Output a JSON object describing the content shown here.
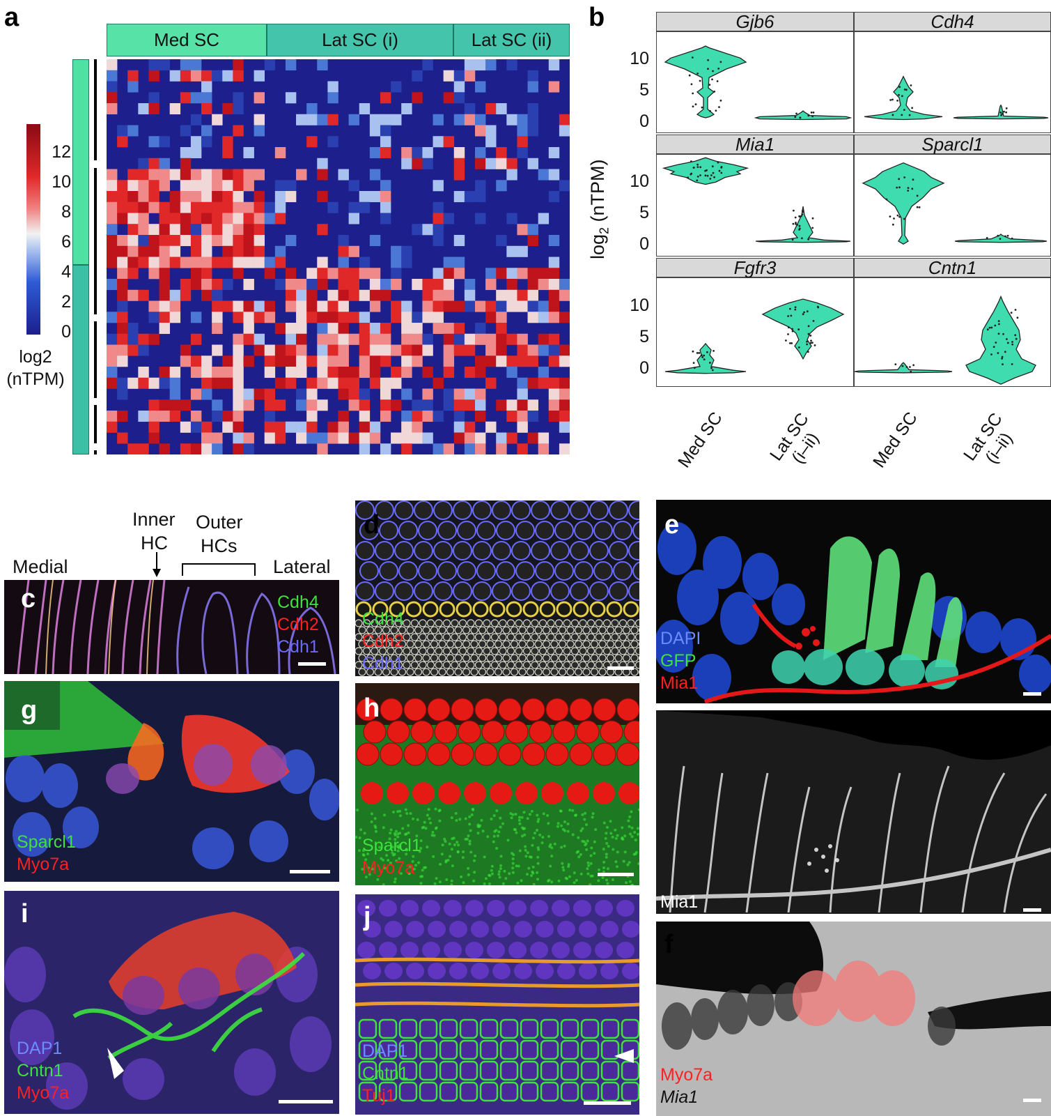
{
  "labels": {
    "a": "a",
    "b": "b",
    "c": "c",
    "d": "d",
    "e": "e",
    "f": "f",
    "g": "g",
    "h": "h",
    "i": "i",
    "j": "j"
  },
  "panel_a": {
    "groups": [
      "Med SC",
      "Lat SC (i)",
      "Lat SC (ii)"
    ],
    "colorbar_ticks": [
      "12",
      "10",
      "8",
      "6",
      "4",
      "2",
      "0"
    ],
    "colorbar_title_line1": "log2",
    "colorbar_title_line2": "(nTPM)",
    "colors": {
      "low": "#1c1f8c",
      "mid": "#f2f2f2",
      "high": "#b4141c",
      "med_bar": "#4fe0a3",
      "lat_bar": "#3dbfa6",
      "header_med": "#57e2a8",
      "header_lat": "#45c4ac"
    }
  },
  "panel_b": {
    "ylabel": "log",
    "ylabel_sub": "2",
    "ylabel_rest": " (nTPM)",
    "facets": [
      "Gjb6",
      "Cdh4",
      "Mia1",
      "Sparcl1",
      "Fgfr3",
      "Cntn1"
    ],
    "yticks": [
      "10",
      "5",
      "0"
    ],
    "xticks": [
      [
        "Med SC"
      ],
      [
        "Lat SC",
        "(i–ii)"
      ],
      [
        "Med SC"
      ],
      [
        "Lat SC",
        "(i–ii)"
      ]
    ],
    "violin_color": "#3fdcaf"
  },
  "panel_c": {
    "annot": {
      "inner_l1": "Inner",
      "inner_l2": "HC",
      "outer_l1": "Outer",
      "outer_l2": "HCs",
      "medial": "Medial",
      "lateral": "Lateral"
    },
    "stains": [
      {
        "text": "Cdh4",
        "color": "#3ee13e"
      },
      {
        "text": "Cdh2",
        "color": "#ff2020"
      },
      {
        "text": "Cdh1",
        "color": "#6a6aff"
      }
    ]
  },
  "panel_d": {
    "stains": [
      {
        "text": "Cdh4",
        "color": "#3ee13e"
      },
      {
        "text": "Cdh2",
        "color": "#ff2020"
      },
      {
        "text": "Cdh1",
        "color": "#6a6aff"
      }
    ]
  },
  "panel_e": {
    "stains": [
      {
        "text": "DAPI",
        "color": "#6a8cff"
      },
      {
        "text": "GFP",
        "color": "#3ee13e"
      },
      {
        "text": "Mia1",
        "color": "#ff2020"
      }
    ],
    "gray_label": "Mia1"
  },
  "panel_f": {
    "stains": [
      {
        "text": "Myo7a",
        "color": "#ff2020"
      },
      {
        "text": "Mia1",
        "color": "#111111"
      }
    ]
  },
  "panel_g": {
    "stains": [
      {
        "text": "Sparcl1",
        "color": "#3ee13e"
      },
      {
        "text": "Myo7a",
        "color": "#ff2020"
      }
    ]
  },
  "panel_h": {
    "stains": [
      {
        "text": "Sparcl1",
        "color": "#3ee13e"
      },
      {
        "text": "Myo7a",
        "color": "#ff2020"
      }
    ]
  },
  "panel_i": {
    "stains": [
      {
        "text": "DAP1",
        "color": "#6a8cff"
      },
      {
        "text": "Cntn1",
        "color": "#3ee13e"
      },
      {
        "text": "Myo7a",
        "color": "#ff2020"
      }
    ]
  },
  "panel_j": {
    "stains": [
      {
        "text": "DAP1",
        "color": "#6a8cff"
      },
      {
        "text": "Cntn1",
        "color": "#3ee13e"
      },
      {
        "text": "Tuj1",
        "color": "#ff2020"
      }
    ]
  }
}
